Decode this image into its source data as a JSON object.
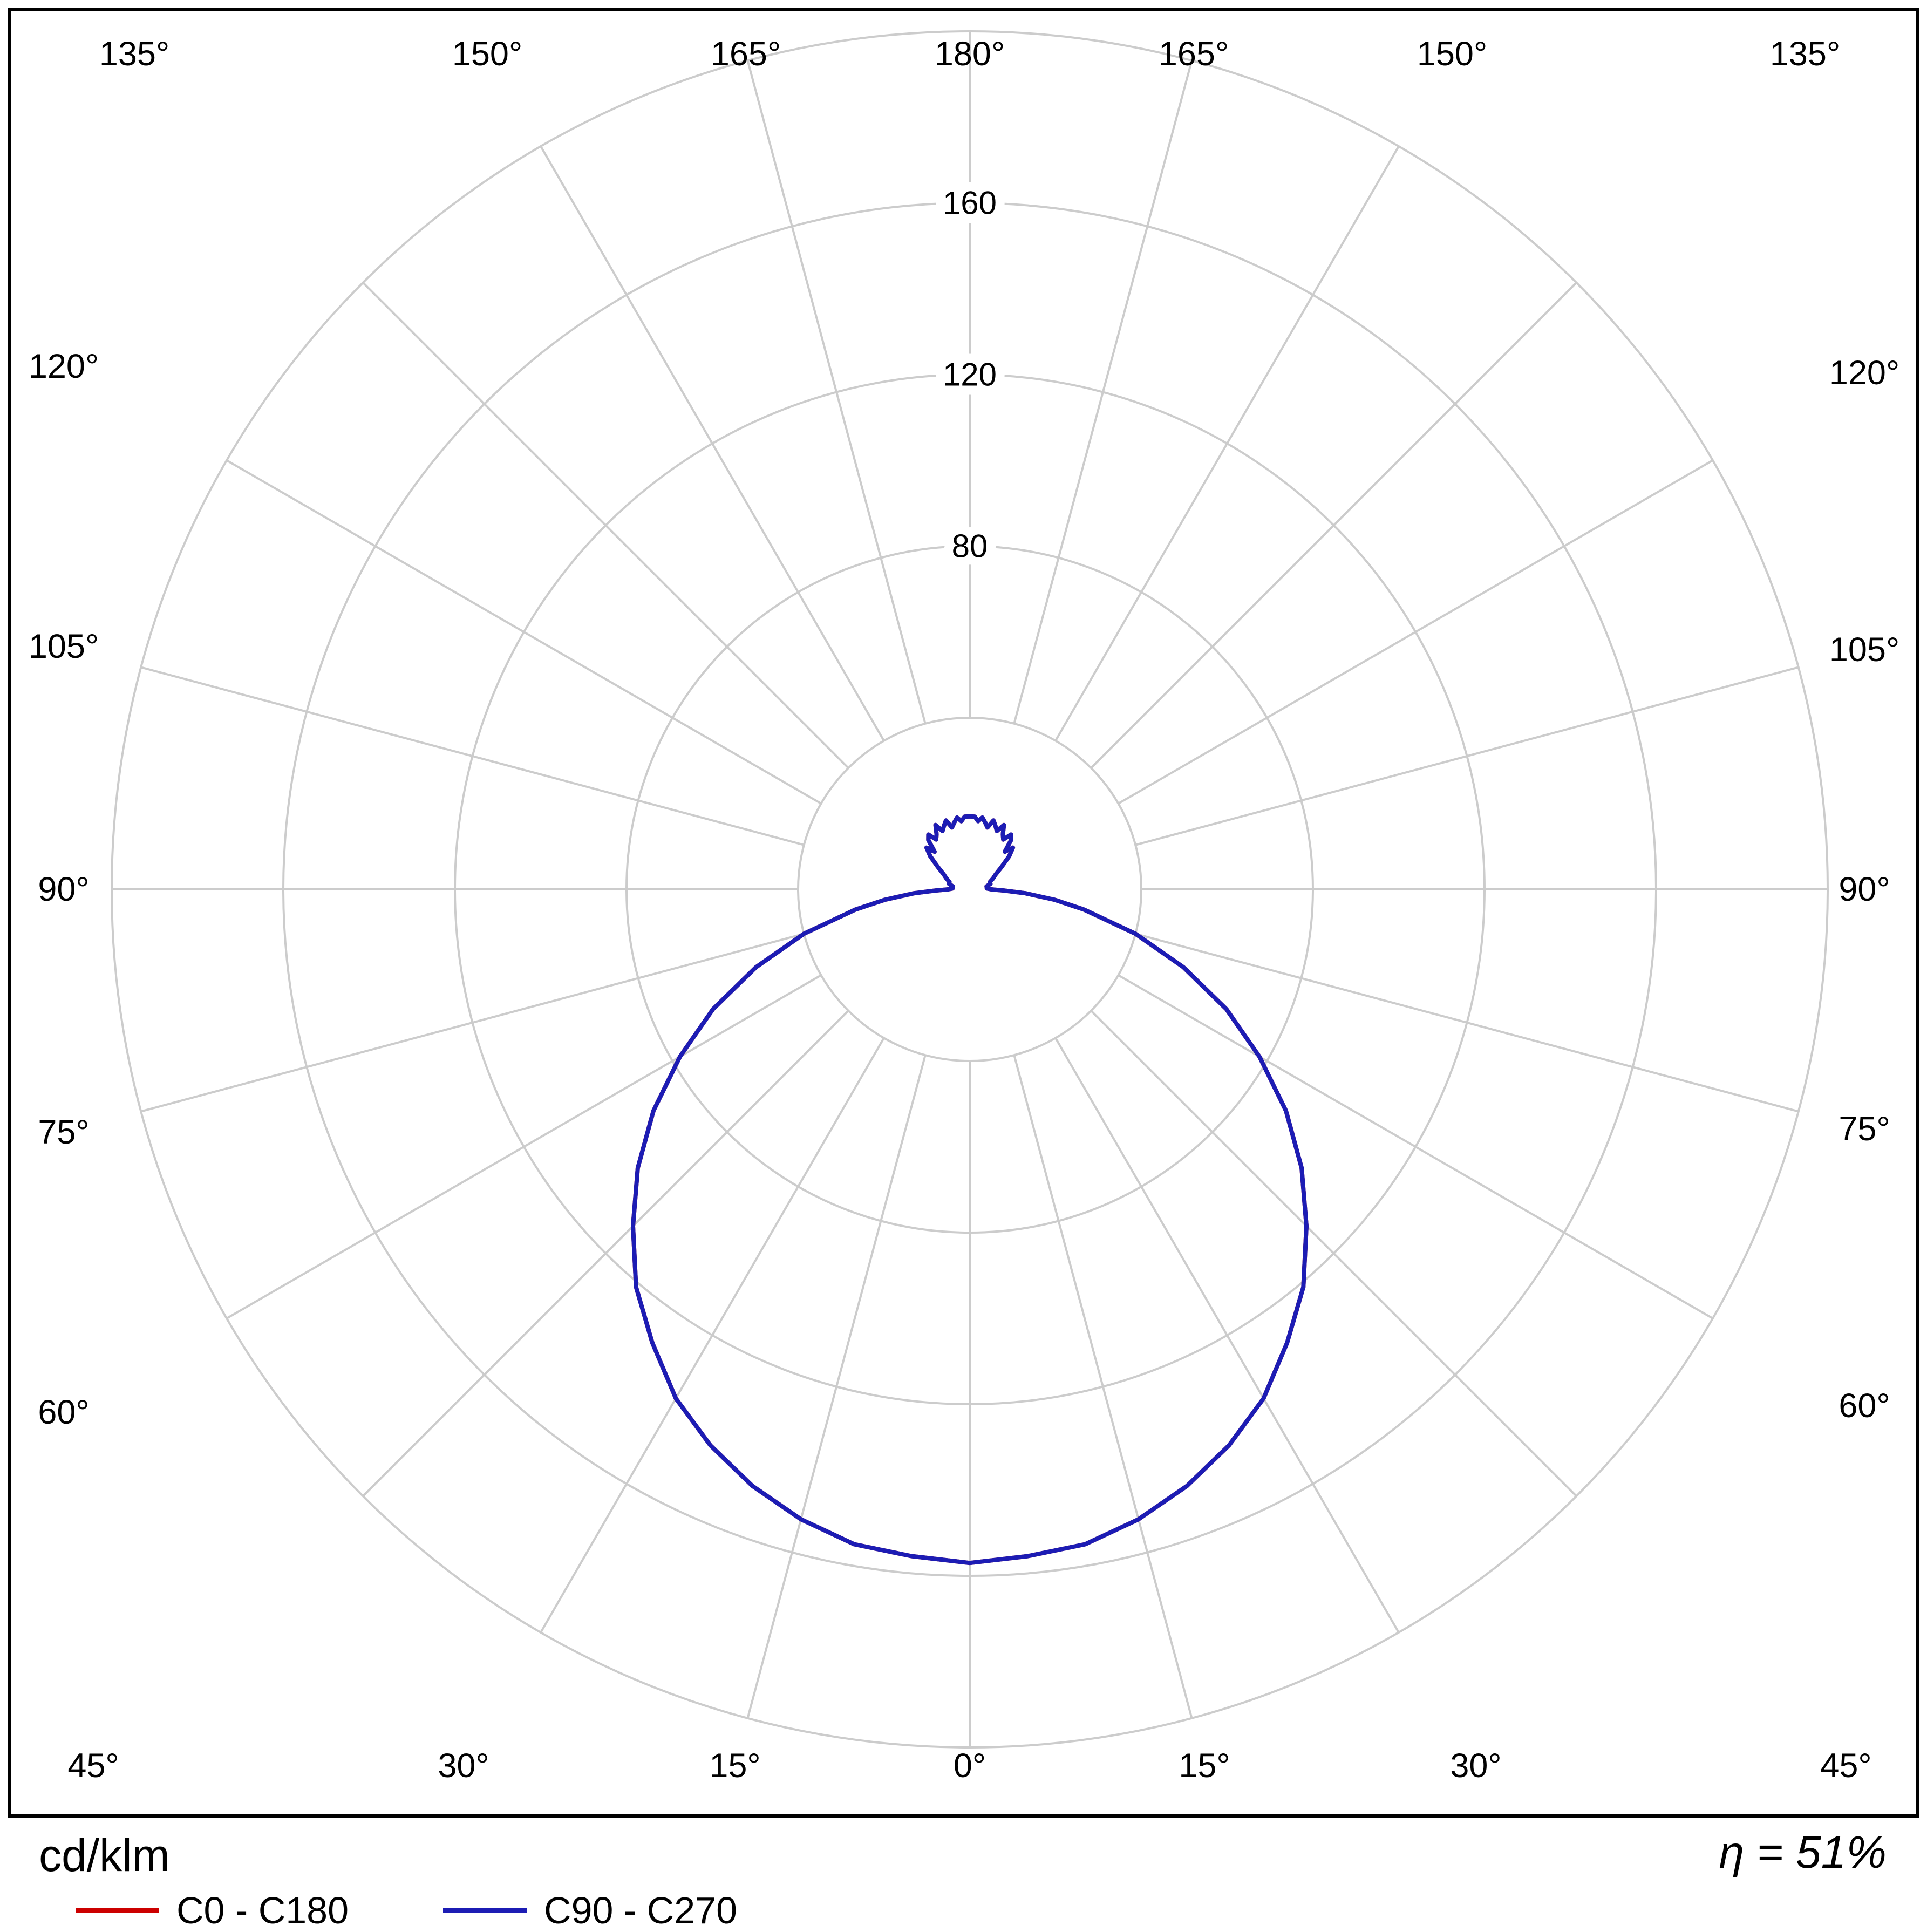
{
  "legend": {
    "unit_label": "cd/klm",
    "efficiency": "η = 51%",
    "items": [
      {
        "label": "C0 - C180",
        "color": "#cc0000"
      },
      {
        "label": "C90 - C270",
        "color": "#1c1cb4"
      }
    ]
  },
  "chart_data": {
    "type": "polar",
    "subtype": "luminous-intensity-distribution",
    "units": "cd/klm",
    "rmax": 200,
    "angle_step_deg": 15,
    "grid_color": "#cccccc",
    "border_color": "#000000",
    "radial_ticks": [
      40,
      80,
      120,
      160,
      200
    ],
    "radial_tick_labels": [
      {
        "value": 80,
        "label": "80"
      },
      {
        "value": 120,
        "label": "120"
      },
      {
        "value": 160,
        "label": "160"
      }
    ],
    "angle_labels": [
      {
        "deg": 0,
        "label": "0°"
      },
      {
        "deg": 15,
        "label": "15°"
      },
      {
        "deg": 30,
        "label": "30°"
      },
      {
        "deg": 45,
        "label": "45°"
      },
      {
        "deg": 60,
        "label": "60°"
      },
      {
        "deg": 75,
        "label": "75°"
      },
      {
        "deg": 90,
        "label": "90°"
      },
      {
        "deg": 105,
        "label": "105°"
      },
      {
        "deg": 120,
        "label": "120°"
      },
      {
        "deg": 135,
        "label": "135°"
      },
      {
        "deg": 150,
        "label": "150°"
      },
      {
        "deg": 165,
        "label": "165°"
      }
    ],
    "angle_label_top": {
      "deg": 180,
      "label": "180°"
    },
    "efficiency": "η = 51%",
    "series": [
      {
        "name": "C0 - C180",
        "color": "#cc0000",
        "points": [
          [
            0,
            157
          ],
          [
            5,
            156
          ],
          [
            10,
            155
          ],
          [
            15,
            152
          ],
          [
            20,
            148
          ],
          [
            25,
            143
          ],
          [
            30,
            137
          ],
          [
            35,
            129
          ],
          [
            40,
            121
          ],
          [
            45,
            111
          ],
          [
            50,
            101
          ],
          [
            55,
            90
          ],
          [
            60,
            78
          ],
          [
            65,
            66
          ],
          [
            70,
            53
          ],
          [
            75,
            40
          ],
          [
            80,
            27
          ],
          [
            83,
            20
          ],
          [
            86,
            13
          ],
          [
            88,
            8
          ],
          [
            90,
            5
          ],
          [
            93,
            4
          ],
          [
            96,
            4
          ],
          [
            100,
            4
          ],
          [
            105,
            5
          ],
          [
            110,
            5
          ],
          [
            115,
            6
          ],
          [
            120,
            7
          ],
          [
            125,
            9
          ],
          [
            130,
            12
          ],
          [
            134,
            14
          ],
          [
            137,
            12
          ],
          [
            140,
            15
          ],
          [
            143,
            16
          ],
          [
            146,
            14
          ],
          [
            149,
            15
          ],
          [
            152,
            17
          ],
          [
            155,
            15
          ],
          [
            158,
            16
          ],
          [
            161,
            17
          ],
          [
            164,
            15
          ],
          [
            167,
            16
          ],
          [
            170,
            17
          ],
          [
            173,
            16
          ],
          [
            176,
            17
          ],
          [
            180,
            17
          ]
        ]
      },
      {
        "name": "C90 - C270",
        "color": "#1c1cb4",
        "points": [
          [
            0,
            157
          ],
          [
            5,
            156
          ],
          [
            10,
            155
          ],
          [
            15,
            152
          ],
          [
            20,
            148
          ],
          [
            25,
            143
          ],
          [
            30,
            137
          ],
          [
            35,
            129
          ],
          [
            40,
            121
          ],
          [
            45,
            111
          ],
          [
            50,
            101
          ],
          [
            55,
            90
          ],
          [
            60,
            78
          ],
          [
            65,
            66
          ],
          [
            70,
            53
          ],
          [
            75,
            40
          ],
          [
            80,
            27
          ],
          [
            83,
            20
          ],
          [
            86,
            13
          ],
          [
            88,
            8
          ],
          [
            90,
            5
          ],
          [
            93,
            4
          ],
          [
            96,
            4
          ],
          [
            100,
            4
          ],
          [
            105,
            5
          ],
          [
            110,
            5
          ],
          [
            115,
            6
          ],
          [
            120,
            7
          ],
          [
            125,
            9
          ],
          [
            130,
            12
          ],
          [
            134,
            14
          ],
          [
            137,
            12
          ],
          [
            140,
            15
          ],
          [
            143,
            16
          ],
          [
            146,
            14
          ],
          [
            149,
            15
          ],
          [
            152,
            17
          ],
          [
            155,
            15
          ],
          [
            158,
            16
          ],
          [
            161,
            17
          ],
          [
            164,
            15
          ],
          [
            167,
            16
          ],
          [
            170,
            17
          ],
          [
            173,
            16
          ],
          [
            176,
            17
          ],
          [
            180,
            17
          ]
        ]
      }
    ]
  }
}
